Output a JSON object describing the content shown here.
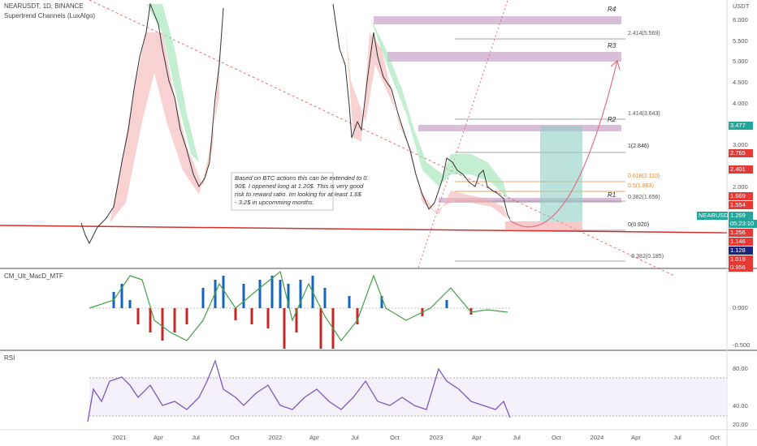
{
  "header": {
    "symbol": "NEARUSDT, 1D, BINANCE",
    "indicator": "Supertrend Channels (LuxAlgo)",
    "currency": "USDT"
  },
  "price_axis": [
    "6.000",
    "5.500",
    "5.000",
    "4.500",
    "4.000",
    "3.000",
    "2.000"
  ],
  "price_tags": [
    {
      "text": "3.477",
      "kind": "green"
    },
    {
      "text": "2.765",
      "kind": "red"
    },
    {
      "text": "2.401",
      "kind": "red"
    },
    {
      "text": "1.669",
      "kind": "red"
    },
    {
      "text": "1.554",
      "kind": "red"
    },
    {
      "text": "NEARUSDT",
      "kind": "green"
    },
    {
      "text": "1.269",
      "kind": "green"
    },
    {
      "text": "05:23:10",
      "kind": "green"
    },
    {
      "text": "1.256",
      "kind": "red"
    },
    {
      "text": "1.146",
      "kind": "red"
    },
    {
      "text": "1.128",
      "kind": "blue"
    },
    {
      "text": "1.019",
      "kind": "red"
    },
    {
      "text": "0.956",
      "kind": "red"
    }
  ],
  "levels": [
    "R4",
    "R3",
    "R2",
    "R1"
  ],
  "fib": [
    "2.414(5.569)",
    "1.414(3.643)",
    "1(2.846)",
    "0.618(2.110)",
    "0.5(1.883)",
    "0.382(1.656)",
    "0(0.920)",
    "-0.382(0.185)"
  ],
  "note": [
    "Based on BTC actions this can be extended to 0.",
    "90$. I oppened long at 1.20$. This is very good",
    "risk to reward ratio. Im looking for at least 1.6$",
    "- 3.2$ in upcomming months."
  ],
  "macd_pane": {
    "title": "CM_Ult_MacD_MTF",
    "axis": [
      "0.000",
      "-0.500"
    ]
  },
  "rsi_pane": {
    "title": "RSI",
    "axis": [
      "80.00",
      "40.00",
      "20.00"
    ]
  },
  "time_axis": [
    "2021",
    "Apr",
    "Jul",
    "Oct",
    "2022",
    "Apr",
    "Jul",
    "Oct",
    "2023",
    "Apr",
    "Jul",
    "Oct",
    "2024",
    "Apr",
    "Jul",
    "Oct"
  ]
}
